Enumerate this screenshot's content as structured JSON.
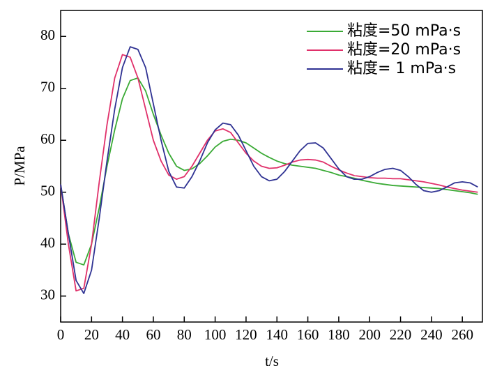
{
  "chart_data": {
    "type": "line",
    "x_label": "t/s",
    "y_label": "P/MPa",
    "x": [
      0,
      5,
      10,
      15,
      20,
      25,
      30,
      35,
      40,
      45,
      50,
      55,
      60,
      65,
      70,
      75,
      80,
      85,
      90,
      95,
      100,
      105,
      110,
      115,
      120,
      125,
      130,
      135,
      140,
      145,
      150,
      155,
      160,
      165,
      170,
      175,
      180,
      185,
      190,
      195,
      200,
      205,
      210,
      215,
      220,
      225,
      230,
      235,
      240,
      245,
      250,
      255,
      260,
      265,
      270
    ],
    "series": [
      {
        "name": "粘度=50 mPa·s",
        "color": "#3aaa35",
        "values": [
          51.5,
          42,
          36.5,
          36,
          40,
          47,
          55,
          62,
          68,
          71.5,
          72,
          69.5,
          65,
          61,
          57.5,
          55,
          54.2,
          54.5,
          55.5,
          57,
          58.7,
          59.8,
          60.2,
          60,
          59.5,
          58.5,
          57.5,
          56.7,
          56,
          55.5,
          55.2,
          55,
          54.8,
          54.6,
          54.2,
          53.8,
          53.3,
          53,
          52.7,
          52.3,
          52,
          51.7,
          51.5,
          51.3,
          51.2,
          51.1,
          51,
          50.9,
          50.8,
          50.7,
          50.5,
          50.3,
          50.1,
          49.9,
          49.6
        ]
      },
      {
        "name": "粘度=20 mPa·s",
        "color": "#e0306a",
        "values": [
          51.5,
          40,
          31,
          31.5,
          40,
          52,
          63,
          72,
          76.5,
          76,
          72,
          66,
          60,
          56,
          53.3,
          52.5,
          53,
          55,
          57.5,
          60,
          61.8,
          62.2,
          61.5,
          59.5,
          57.5,
          56,
          55,
          54.6,
          54.7,
          55.2,
          55.8,
          56.2,
          56.3,
          56.2,
          55.8,
          55,
          54.3,
          53.7,
          53.2,
          53,
          52.8,
          52.7,
          52.7,
          52.6,
          52.6,
          52.4,
          52.2,
          52,
          51.7,
          51.4,
          51,
          50.7,
          50.4,
          50.2,
          50
        ]
      },
      {
        "name": "粘度= 1 mPa·s",
        "color": "#2e3192",
        "values": [
          51.5,
          42,
          33,
          30.5,
          35,
          45,
          56,
          66,
          74,
          78,
          77.5,
          74,
          67,
          60,
          54,
          51,
          50.8,
          53,
          56,
          59.5,
          62,
          63.3,
          63,
          61,
          58,
          55,
          53,
          52.2,
          52.5,
          54,
          56,
          58,
          59.4,
          59.5,
          58.5,
          56.5,
          54.5,
          53,
          52.5,
          52.5,
          53,
          53.8,
          54.4,
          54.6,
          54.2,
          53,
          51.5,
          50.3,
          50,
          50.3,
          51,
          51.8,
          52,
          51.8,
          51
        ]
      }
    ],
    "xlim": [
      0,
      273
    ],
    "xticks": [
      0,
      20,
      40,
      60,
      80,
      100,
      120,
      140,
      160,
      180,
      200,
      220,
      240,
      260
    ],
    "ylim": [
      25,
      85
    ],
    "yticks": [
      30,
      40,
      50,
      60,
      70,
      80
    ],
    "legend": "upper-right"
  }
}
